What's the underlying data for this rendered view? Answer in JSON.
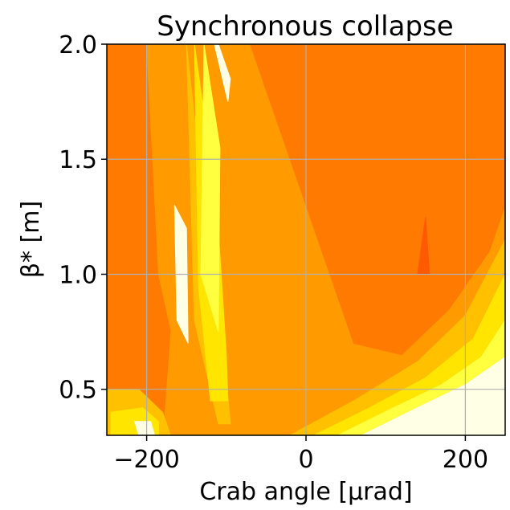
{
  "chart_data": {
    "type": "heatmap",
    "title": "Synchronous collapse",
    "xlabel": "Crab angle [μrad]",
    "ylabel": "β* [m]",
    "xlim": [
      -250,
      250
    ],
    "ylim": [
      0.3,
      2.0
    ],
    "xticks": [
      -200,
      0,
      200
    ],
    "xtick_labels": [
      "−200",
      "0",
      "200"
    ],
    "yticks": [
      0.5,
      1.0,
      1.5,
      2.0
    ],
    "ytick_labels": [
      "0.5",
      "1.0",
      "1.5",
      "2.0"
    ],
    "grid": true,
    "colormap": "autumn (filled contour)",
    "colors": {
      "lowest": "#ff5a00",
      "low": "#ff7a00",
      "mid": "#ff9a00",
      "midhigh": "#ffc000",
      "high": "#ffe500",
      "higher": "#ffff40",
      "highest": "#ffffe6"
    },
    "regions": [
      {
        "level": "low",
        "x": [
          -250,
          -250,
          -180,
          -165,
          -200,
          -250
        ],
        "y": [
          2.0,
          0.3,
          0.3,
          1.0,
          2.0,
          2.0
        ]
      },
      {
        "level": "low",
        "x": [
          -70,
          -20,
          20,
          60,
          120,
          180,
          230,
          250,
          250,
          120,
          60,
          10
        ],
        "y": [
          2.0,
          1.5,
          1.1,
          0.7,
          0.65,
          0.85,
          1.1,
          1.3,
          2.0,
          2.0,
          2.0,
          2.0
        ]
      },
      {
        "level": "lowest",
        "x": [
          140,
          150,
          155,
          145
        ],
        "y": [
          1.0,
          1.25,
          1.0,
          1.0
        ]
      },
      {
        "level": "mid",
        "x": [
          -200,
          -160,
          -130,
          -100,
          -110,
          -150,
          -185
        ],
        "y": [
          2.0,
          1.1,
          0.5,
          0.3,
          0.3,
          0.45,
          1.0
        ]
      },
      {
        "level": "midhigh",
        "x": [
          -150,
          -125,
          -100,
          -95,
          -110,
          -140
        ],
        "y": [
          2.0,
          1.2,
          0.55,
          0.35,
          0.35,
          0.8
        ]
      },
      {
        "level": "high",
        "x": [
          -140,
          -112,
          -100,
          -98,
          -120,
          -135
        ],
        "y": [
          2.0,
          1.3,
          0.65,
          0.45,
          0.45,
          0.95
        ]
      },
      {
        "level": "higher",
        "x": [
          -128,
          -108,
          -110,
          -132
        ],
        "y": [
          2.0,
          1.55,
          0.75,
          1.0
        ]
      },
      {
        "level": "highest",
        "x": [
          -115,
          -98,
          -95,
          -110
        ],
        "y": [
          2.0,
          1.75,
          1.85,
          2.0
        ]
      },
      {
        "level": "highest",
        "x": [
          -165,
          -150,
          -148,
          -162
        ],
        "y": [
          1.3,
          1.2,
          0.7,
          0.8
        ]
      },
      {
        "level": "midhigh",
        "x": [
          -250,
          -210,
          -180,
          -170,
          -250
        ],
        "y": [
          0.5,
          0.5,
          0.4,
          0.3,
          0.3
        ]
      },
      {
        "level": "high",
        "x": [
          -245,
          -205,
          -185,
          -185,
          -245
        ],
        "y": [
          0.4,
          0.42,
          0.36,
          0.3,
          0.3
        ]
      },
      {
        "level": "highest",
        "x": [
          -215,
          -195,
          -190,
          -210
        ],
        "y": [
          0.36,
          0.36,
          0.3,
          0.3
        ]
      },
      {
        "level": "midhigh",
        "x": [
          -20,
          60,
          140,
          200,
          250,
          250
        ],
        "y": [
          0.3,
          0.45,
          0.62,
          0.82,
          1.15,
          0.3
        ]
      },
      {
        "level": "high",
        "x": [
          10,
          80,
          150,
          210,
          250,
          250
        ],
        "y": [
          0.3,
          0.42,
          0.55,
          0.72,
          1.0,
          0.3
        ]
      },
      {
        "level": "higher",
        "x": [
          40,
          110,
          170,
          220,
          250,
          250
        ],
        "y": [
          0.3,
          0.42,
          0.52,
          0.64,
          0.8,
          0.3
        ]
      },
      {
        "level": "highest",
        "x": [
          70,
          140,
          200,
          250,
          250
        ],
        "y": [
          0.3,
          0.42,
          0.52,
          0.64,
          0.3
        ]
      }
    ]
  }
}
